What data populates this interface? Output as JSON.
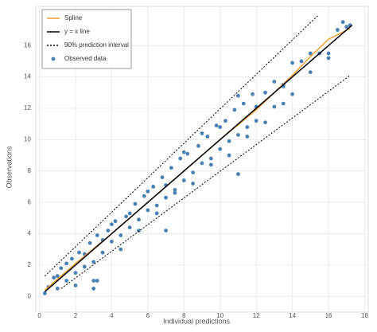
{
  "chart_data": {
    "type": "scatter",
    "xlabel": "Individual predictions",
    "ylabel": "Observations",
    "xlim": [
      -0.2,
      18.2
    ],
    "ylim": [
      -1,
      18.5
    ],
    "xticks": [
      0,
      2,
      4,
      6,
      8,
      10,
      12,
      14,
      16,
      18
    ],
    "yticks": [
      0,
      2,
      4,
      6,
      8,
      10,
      12,
      14,
      16
    ],
    "grid": true,
    "legend": "top-left",
    "series": [
      {
        "name": "Observed data",
        "kind": "points",
        "color": "#4a80b3",
        "x": [
          0.5,
          0.8,
          1.0,
          1.2,
          1.5,
          1.8,
          2.0,
          2.2,
          2.5,
          2.8,
          3.0,
          3.2,
          3.5,
          3.8,
          4.0,
          4.2,
          4.5,
          4.8,
          5.0,
          5.3,
          5.5,
          5.8,
          6.0,
          6.3,
          6.5,
          6.8,
          7.0,
          7.3,
          7.5,
          7.8,
          8.0,
          8.2,
          8.5,
          8.8,
          9.0,
          9.3,
          9.5,
          9.8,
          10.0,
          10.3,
          10.5,
          10.8,
          11.0,
          11.3,
          11.5,
          11.8,
          12.0,
          12.5,
          13.0,
          13.5,
          14.0,
          14.5,
          15.0,
          15.5,
          16.0,
          16.5,
          17.0,
          0.3,
          1.0,
          1.5,
          2.0,
          2.5,
          3.0,
          3.5,
          4.0,
          4.5,
          5.0,
          5.5,
          6.0,
          6.5,
          7.0,
          7.5,
          8.0,
          8.5,
          9.0,
          9.5,
          10.0,
          10.5,
          11.0,
          11.5,
          12.0,
          12.5,
          13.0,
          13.5,
          14.0,
          15.0,
          16.0,
          16.8,
          17.2,
          3.0,
          7.0,
          3.2,
          11.0,
          13.5
        ],
        "y": [
          0.6,
          1.2,
          0.5,
          1.8,
          1.0,
          2.4,
          1.5,
          2.8,
          1.9,
          3.4,
          2.2,
          3.9,
          2.8,
          4.2,
          3.5,
          4.8,
          3.9,
          5.1,
          4.4,
          5.9,
          4.9,
          6.4,
          5.5,
          7.0,
          5.8,
          7.6,
          6.3,
          8.2,
          6.8,
          8.8,
          7.4,
          9.1,
          7.9,
          9.6,
          8.5,
          10.2,
          8.8,
          10.9,
          9.4,
          11.2,
          9.9,
          11.9,
          10.3,
          12.3,
          10.8,
          12.9,
          11.2,
          13.0,
          12.1,
          13.5,
          12.9,
          15.0,
          14.3,
          15.5,
          15.2,
          17.0,
          17.2,
          0.2,
          1.3,
          2.1,
          0.7,
          2.7,
          1.0,
          3.6,
          4.6,
          3.0,
          5.3,
          4.2,
          6.7,
          5.3,
          7.1,
          6.6,
          9.2,
          7.2,
          10.4,
          8.4,
          10.8,
          9.0,
          12.8,
          10.2,
          12.1,
          11.1,
          13.7,
          12.3,
          14.9,
          15.5,
          15.5,
          17.5,
          17.3,
          0.5,
          4.2,
          1.0,
          7.8,
          13.4
        ]
      },
      {
        "name": "Spline",
        "kind": "line",
        "color": "#f0a030",
        "x": [
          0.3,
          2,
          4,
          6,
          8,
          10,
          12,
          14,
          15,
          16,
          17.2
        ],
        "y": [
          0.4,
          2.1,
          4.0,
          6.0,
          8.0,
          10.0,
          11.9,
          14.1,
          15.3,
          16.4,
          17.1
        ]
      },
      {
        "name": "y = x line",
        "kind": "line",
        "color": "#000000",
        "x": [
          0.3,
          17.3
        ],
        "y": [
          0.3,
          17.3
        ]
      },
      {
        "name": "90% prediction interval",
        "kind": "band",
        "color": "#000000",
        "x": [
          0.3,
          15.4
        ],
        "upper": [
          1.3,
          17.9
        ],
        "x_lower": [
          1.2,
          17.2
        ],
        "lower": [
          0.5,
          14.1
        ]
      }
    ]
  }
}
